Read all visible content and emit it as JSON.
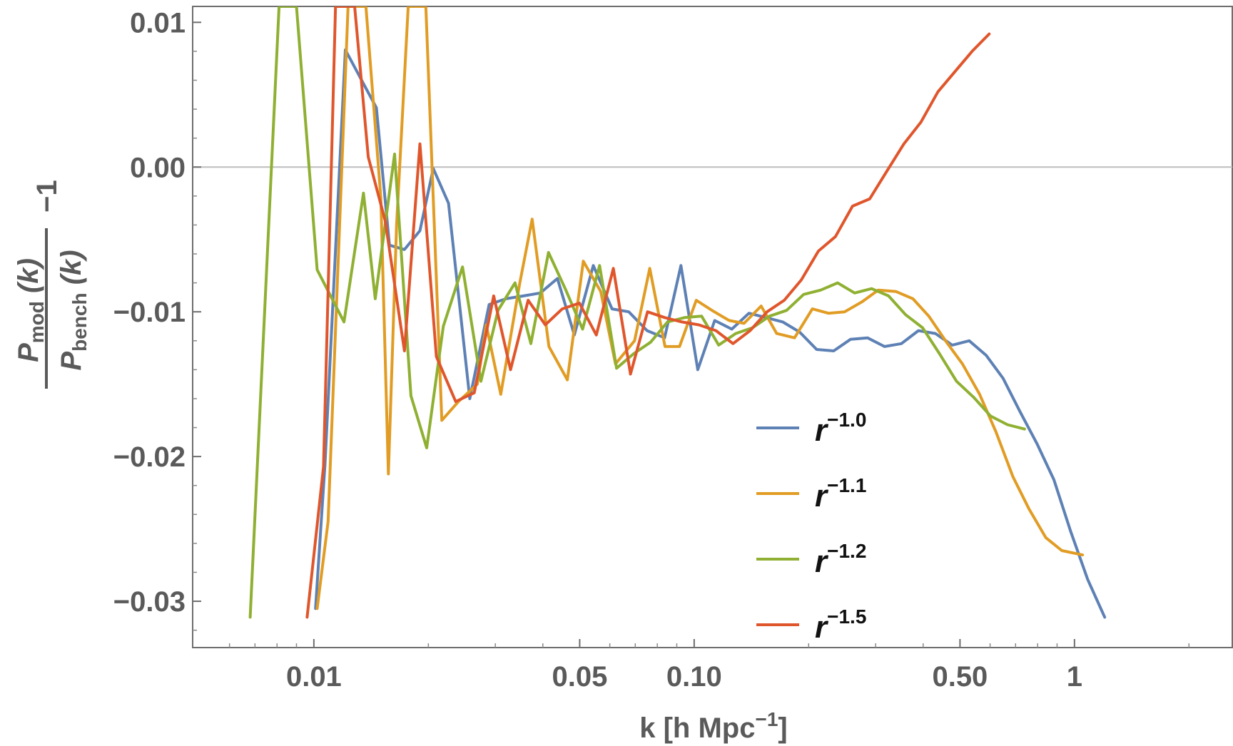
{
  "chart_data": {
    "type": "line",
    "title": "",
    "xlabel": "k [h Mpc",
    "xlabel_sup": "−1",
    "xlabel_close": "]",
    "xscale": "log",
    "xlim": [
      0.0048,
      2.6
    ],
    "ylim": [
      -0.0332,
      0.0111
    ],
    "yscale": "linear",
    "grid": false,
    "zero_line": true,
    "ylabel": {
      "num_base": "P",
      "num_sub": "mod",
      "num_tail": " (k)",
      "den_base": "P",
      "den_sub": "bench",
      "den_tail": " (k)",
      "suffix": "−1"
    },
    "x_ticks": [
      {
        "value": 0.01,
        "label": "0.01"
      },
      {
        "value": 0.05,
        "label": "0.05"
      },
      {
        "value": 0.1,
        "label": "0.10"
      },
      {
        "value": 0.5,
        "label": "0.50"
      },
      {
        "value": 1.0,
        "label": "1"
      }
    ],
    "x_minor_ticks": [
      0.006,
      0.007,
      0.008,
      0.009,
      0.02,
      0.03,
      0.04,
      0.06,
      0.07,
      0.08,
      0.09,
      0.2,
      0.3,
      0.4,
      0.6,
      0.7,
      0.8,
      0.9,
      2
    ],
    "y_ticks": [
      {
        "value": 0.01,
        "label": "0.01"
      },
      {
        "value": 0.0,
        "label": "0.00"
      },
      {
        "value": -0.01,
        "label": "−0.01"
      },
      {
        "value": -0.02,
        "label": "−0.02"
      },
      {
        "value": -0.03,
        "label": "−0.03"
      }
    ],
    "y_minor_step": 0.002,
    "legend_position": "center-right",
    "series": [
      {
        "name": "r",
        "exponent": "−1.0",
        "color": "#5e81b5",
        "points": [
          [
            0.0101,
            -0.0305
          ],
          [
            0.0107,
            -0.0205
          ],
          [
            0.0121,
            0.0081
          ],
          [
            0.0146,
            0.0041
          ],
          [
            0.0158,
            -0.0054
          ],
          [
            0.0173,
            -0.0057
          ],
          [
            0.019,
            -0.0044
          ],
          [
            0.0206,
            -0.0001
          ],
          [
            0.0226,
            -0.0025
          ],
          [
            0.0257,
            -0.016
          ],
          [
            0.0289,
            -0.0095
          ],
          [
            0.032,
            -0.0091
          ],
          [
            0.0356,
            -0.0089
          ],
          [
            0.0394,
            -0.0087
          ],
          [
            0.0437,
            -0.0077
          ],
          [
            0.0484,
            -0.0116
          ],
          [
            0.0543,
            -0.0068
          ],
          [
            0.0608,
            -0.0098
          ],
          [
            0.0673,
            -0.01
          ],
          [
            0.0752,
            -0.0113
          ],
          [
            0.0836,
            -0.0118
          ],
          [
            0.0923,
            -0.0068
          ],
          [
            0.1022,
            -0.014
          ],
          [
            0.1132,
            -0.0106
          ],
          [
            0.1256,
            -0.0112
          ],
          [
            0.1393,
            -0.0101
          ],
          [
            0.1545,
            -0.0104
          ],
          [
            0.171,
            -0.0107
          ],
          [
            0.1894,
            -0.0114
          ],
          [
            0.2099,
            -0.0126
          ],
          [
            0.2327,
            -0.0127
          ],
          [
            0.2578,
            -0.0119
          ],
          [
            0.2856,
            -0.0118
          ],
          [
            0.3166,
            -0.0124
          ],
          [
            0.3507,
            -0.0122
          ],
          [
            0.3887,
            -0.0113
          ],
          [
            0.4307,
            -0.0115
          ],
          [
            0.4771,
            -0.0123
          ],
          [
            0.5287,
            -0.012
          ],
          [
            0.5857,
            -0.013
          ],
          [
            0.649,
            -0.0146
          ],
          [
            0.719,
            -0.0169
          ],
          [
            0.7967,
            -0.0191
          ],
          [
            0.8828,
            -0.0216
          ],
          [
            0.978,
            -0.0252
          ],
          [
            1.0836,
            -0.0285
          ],
          [
            1.2007,
            -0.0311
          ]
        ]
      },
      {
        "name": "r",
        "exponent": "−1.1",
        "color": "#e19c24",
        "points": [
          [
            0.0102,
            -0.0305
          ],
          [
            0.0109,
            -0.0245
          ],
          [
            0.0123,
            0.0111
          ],
          [
            0.0137,
            0.0111
          ],
          [
            0.015,
            -0.0021
          ],
          [
            0.0157,
            -0.0212
          ],
          [
            0.0165,
            -0.004
          ],
          [
            0.0177,
            0.0111
          ],
          [
            0.0197,
            0.0111
          ],
          [
            0.0217,
            -0.0175
          ],
          [
            0.024,
            -0.0162
          ],
          [
            0.0269,
            -0.015
          ],
          [
            0.0284,
            -0.0109
          ],
          [
            0.031,
            -0.0157
          ],
          [
            0.0348,
            -0.008
          ],
          [
            0.0375,
            -0.0036
          ],
          [
            0.0415,
            -0.0124
          ],
          [
            0.0464,
            -0.0147
          ],
          [
            0.0511,
            -0.0065
          ],
          [
            0.0568,
            -0.0086
          ],
          [
            0.0621,
            -0.0136
          ],
          [
            0.0697,
            -0.012
          ],
          [
            0.0764,
            -0.007
          ],
          [
            0.0838,
            -0.0124
          ],
          [
            0.0915,
            -0.0124
          ],
          [
            0.1013,
            -0.0092
          ],
          [
            0.1114,
            -0.0099
          ],
          [
            0.1236,
            -0.0106
          ],
          [
            0.1352,
            -0.0108
          ],
          [
            0.15,
            -0.0096
          ],
          [
            0.1648,
            -0.0115
          ],
          [
            0.1836,
            -0.0118
          ],
          [
            0.2045,
            -0.0098
          ],
          [
            0.2254,
            -0.0101
          ],
          [
            0.2488,
            -0.01
          ],
          [
            0.2766,
            -0.0093
          ],
          [
            0.3048,
            -0.0085
          ],
          [
            0.3395,
            -0.0086
          ],
          [
            0.376,
            -0.0091
          ],
          [
            0.414,
            -0.0103
          ],
          [
            0.458,
            -0.012
          ],
          [
            0.5075,
            -0.0136
          ],
          [
            0.5632,
            -0.0157
          ],
          [
            0.6216,
            -0.0183
          ],
          [
            0.689,
            -0.0214
          ],
          [
            0.7586,
            -0.0236
          ],
          [
            0.8403,
            -0.0256
          ],
          [
            0.9262,
            -0.0265
          ],
          [
            1.05,
            -0.0268
          ]
        ]
      },
      {
        "name": "r",
        "exponent": "−1.2",
        "color": "#8fb032",
        "points": [
          [
            0.0068,
            -0.0311
          ],
          [
            0.0081,
            0.0111
          ],
          [
            0.009,
            0.0111
          ],
          [
            0.0102,
            -0.0071
          ],
          [
            0.012,
            -0.0107
          ],
          [
            0.0135,
            -0.0018
          ],
          [
            0.0145,
            -0.0091
          ],
          [
            0.0163,
            0.0009
          ],
          [
            0.018,
            -0.0158
          ],
          [
            0.0198,
            -0.0194
          ],
          [
            0.0219,
            -0.011
          ],
          [
            0.0246,
            -0.0069
          ],
          [
            0.0275,
            -0.0148
          ],
          [
            0.0305,
            -0.0099
          ],
          [
            0.0338,
            -0.008
          ],
          [
            0.0372,
            -0.0122
          ],
          [
            0.0414,
            -0.0059
          ],
          [
            0.0458,
            -0.0084
          ],
          [
            0.0509,
            -0.0112
          ],
          [
            0.0564,
            -0.0068
          ],
          [
            0.0625,
            -0.0139
          ],
          [
            0.0693,
            -0.0129
          ],
          [
            0.0768,
            -0.0121
          ],
          [
            0.0851,
            -0.0107
          ],
          [
            0.0943,
            -0.0104
          ],
          [
            0.1046,
            -0.0103
          ],
          [
            0.116,
            -0.0123
          ],
          [
            0.1286,
            -0.0115
          ],
          [
            0.1425,
            -0.0111
          ],
          [
            0.1578,
            -0.0103
          ],
          [
            0.175,
            -0.0099
          ],
          [
            0.194,
            -0.0088
          ],
          [
            0.215,
            -0.0085
          ],
          [
            0.2383,
            -0.008
          ],
          [
            0.2641,
            -0.0087
          ],
          [
            0.2928,
            -0.0084
          ],
          [
            0.3245,
            -0.0089
          ],
          [
            0.3597,
            -0.0102
          ],
          [
            0.3986,
            -0.0111
          ],
          [
            0.4417,
            -0.0129
          ],
          [
            0.4896,
            -0.0148
          ],
          [
            0.5427,
            -0.0159
          ],
          [
            0.6015,
            -0.0172
          ],
          [
            0.6667,
            -0.0178
          ],
          [
            0.739,
            -0.0181
          ]
        ]
      },
      {
        "name": "r",
        "exponent": "−1.5",
        "color": "#e0562c",
        "points": [
          [
            0.0096,
            -0.0311
          ],
          [
            0.0106,
            -0.0207
          ],
          [
            0.0114,
            0.0111
          ],
          [
            0.0128,
            0.0111
          ],
          [
            0.0139,
            0.0007
          ],
          [
            0.0154,
            -0.0037
          ],
          [
            0.0173,
            -0.0127
          ],
          [
            0.019,
            0.0016
          ],
          [
            0.021,
            -0.0131
          ],
          [
            0.0236,
            -0.0162
          ],
          [
            0.0264,
            -0.0156
          ],
          [
            0.0297,
            -0.0089
          ],
          [
            0.0329,
            -0.014
          ],
          [
            0.0366,
            -0.0092
          ],
          [
            0.0406,
            -0.0109
          ],
          [
            0.045,
            -0.0098
          ],
          [
            0.0499,
            -0.0094
          ],
          [
            0.0553,
            -0.0116
          ],
          [
            0.0613,
            -0.007
          ],
          [
            0.068,
            -0.0143
          ],
          [
            0.0754,
            -0.01
          ],
          [
            0.0837,
            -0.0104
          ],
          [
            0.0928,
            -0.0107
          ],
          [
            0.1029,
            -0.0109
          ],
          [
            0.1141,
            -0.0113
          ],
          [
            0.1265,
            -0.0122
          ],
          [
            0.1403,
            -0.0113
          ],
          [
            0.1555,
            -0.01
          ],
          [
            0.1725,
            -0.0092
          ],
          [
            0.1913,
            -0.0078
          ],
          [
            0.2122,
            -0.0058
          ],
          [
            0.2353,
            -0.0048
          ],
          [
            0.2609,
            -0.0027
          ],
          [
            0.2894,
            -0.0022
          ],
          [
            0.3209,
            -0.0003
          ],
          [
            0.3559,
            0.0016
          ],
          [
            0.3946,
            0.0031
          ],
          [
            0.4376,
            0.0052
          ],
          [
            0.4852,
            0.0066
          ],
          [
            0.5381,
            0.008
          ],
          [
            0.5967,
            0.0092
          ]
        ]
      }
    ]
  }
}
